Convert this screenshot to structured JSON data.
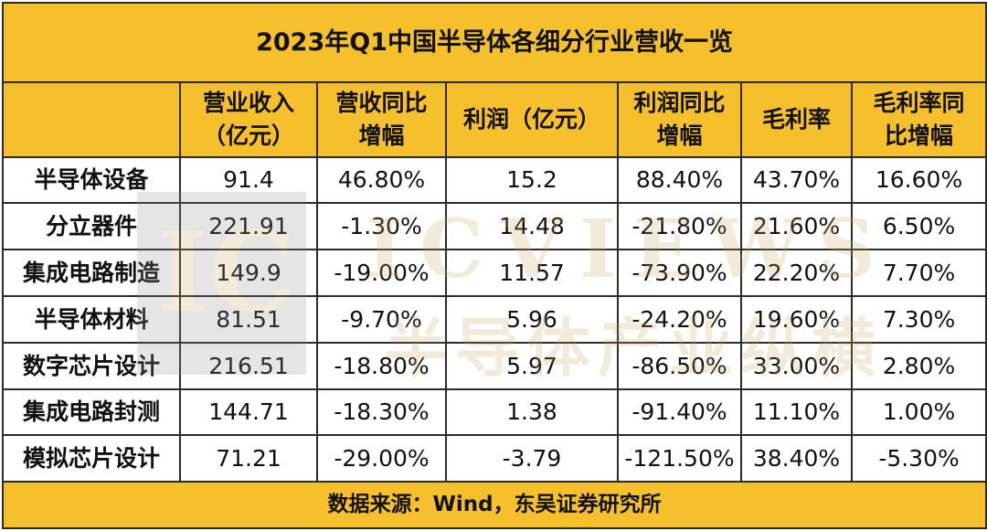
{
  "title": "2023年Q1中国半导体各细分行业营收一览",
  "headers": [
    "",
    "营业收入\n（亿元）",
    "营收同比\n增幅",
    "利润（亿元）",
    "利润同比\n增幅",
    "毛利率",
    "毛利率同\n比增幅"
  ],
  "rows": [
    [
      "半导体设备",
      "91.4",
      "46.80%",
      "15.2",
      "88.40%",
      "43.70%",
      "16.60%"
    ],
    [
      "分立器件",
      "221.91",
      "-1.30%",
      "14.48",
      "-21.80%",
      "21.60%",
      "6.50%"
    ],
    [
      "集成电路制造",
      "149.9",
      "-19.00%",
      "11.57",
      "-73.90%",
      "22.20%",
      "7.70%"
    ],
    [
      "半导体材料",
      "81.51",
      "-9.70%",
      "5.96",
      "-24.20%",
      "19.60%",
      "7.30%"
    ],
    [
      "数字芯片设计",
      "216.51",
      "-18.80%",
      "5.97",
      "-86.50%",
      "33.00%",
      "2.80%"
    ],
    [
      "集成电路封测",
      "144.71",
      "-18.30%",
      "1.38",
      "-91.40%",
      "11.10%",
      "1.00%"
    ],
    [
      "模拟芯片设计",
      "71.21",
      "-29.00%",
      "-3.79",
      "-121.50%",
      "38.40%",
      "-5.30%"
    ]
  ],
  "source": "数据来源：Wind，东吴证券研究所",
  "watermark": {
    "logo": "IC",
    "brand": "ICVIEWS",
    "sub": "半导体产业纵横"
  },
  "colors": {
    "header_bg": "#f6c02c",
    "border": "#2b2b2b"
  }
}
